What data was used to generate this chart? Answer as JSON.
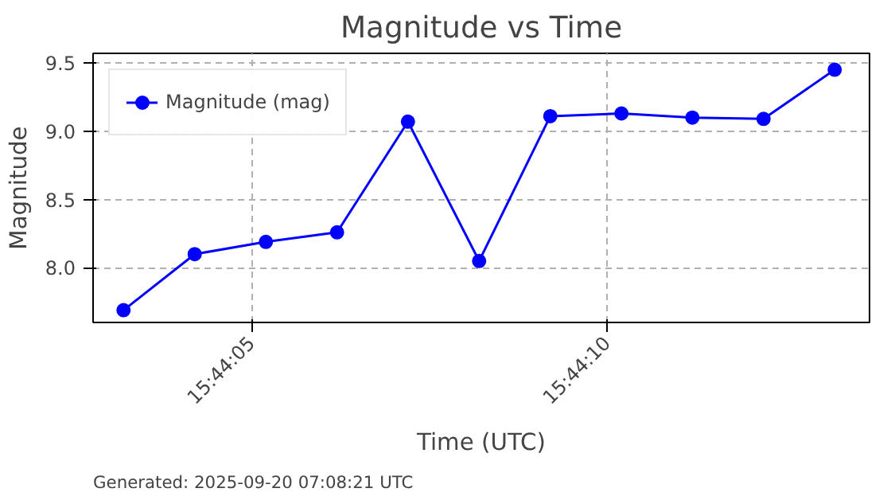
{
  "chart_data": {
    "type": "line",
    "title": "Magnitude vs Time",
    "xlabel": "Time (UTC)",
    "ylabel": "Magnitude",
    "x": [
      15.734222,
      15.7345,
      15.734778,
      15.735056,
      15.735333,
      15.735611,
      15.735889,
      15.736167,
      15.736444,
      15.736722,
      15.737
    ],
    "series": [
      {
        "name": "Magnitude (mag)",
        "color": "#0000ff",
        "values": [
          7.69,
          8.1,
          8.19,
          8.26,
          9.07,
          8.05,
          9.11,
          9.13,
          9.1,
          9.09,
          9.45
        ]
      }
    ],
    "xlim": [
      15.734103,
      15.737136
    ],
    "xticks": [
      {
        "value": 15.734722,
        "label": "15:44:05"
      },
      {
        "value": 15.736111,
        "label": "15:44:10"
      }
    ],
    "ylim": [
      7.6,
      9.57
    ],
    "yticks": [
      {
        "value": 8,
        "label": "8.0"
      },
      8.5,
      {
        "value": 9,
        "label": "9.0"
      },
      9.5
    ],
    "grid": true,
    "legend": "top left",
    "marker": "circle",
    "line_style": "solid",
    "annotations": [
      "Generated: 2025-09-20 07:08:21 UTC"
    ]
  }
}
